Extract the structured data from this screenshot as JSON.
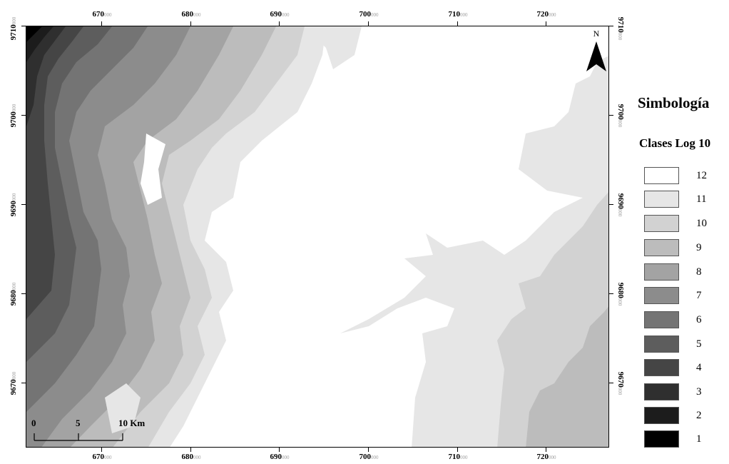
{
  "legend": {
    "title": "Simbología",
    "subtitle": "Clases Log 10",
    "classes": [
      {
        "label": "12",
        "color": "#ffffff"
      },
      {
        "label": "11",
        "color": "#e6e6e6"
      },
      {
        "label": "10",
        "color": "#d2d2d2"
      },
      {
        "label": "9",
        "color": "#bcbcbc"
      },
      {
        "label": "8",
        "color": "#a3a3a3"
      },
      {
        "label": "7",
        "color": "#8c8c8c"
      },
      {
        "label": "6",
        "color": "#747474"
      },
      {
        "label": "5",
        "color": "#5d5d5d"
      },
      {
        "label": "4",
        "color": "#454545"
      },
      {
        "label": "3",
        "color": "#2f2f2f"
      },
      {
        "label": "2",
        "color": "#1c1c1c"
      },
      {
        "label": "1",
        "color": "#000000"
      }
    ]
  },
  "axes": {
    "x_ticks": [
      {
        "main": "670",
        "sub": "000"
      },
      {
        "main": "680",
        "sub": "000"
      },
      {
        "main": "690",
        "sub": "000"
      },
      {
        "main": "700",
        "sub": "000"
      },
      {
        "main": "710",
        "sub": "000"
      },
      {
        "main": "720",
        "sub": "000"
      }
    ],
    "y_ticks": [
      {
        "main": "9710",
        "sub": "000"
      },
      {
        "main": "9700",
        "sub": "000"
      },
      {
        "main": "9690",
        "sub": "000"
      },
      {
        "main": "9680",
        "sub": "000"
      },
      {
        "main": "9670",
        "sub": "000"
      }
    ]
  },
  "north_arrow": {
    "label": "N"
  },
  "scale_bar": {
    "labels": [
      "0",
      "5",
      "10 Km"
    ]
  }
}
